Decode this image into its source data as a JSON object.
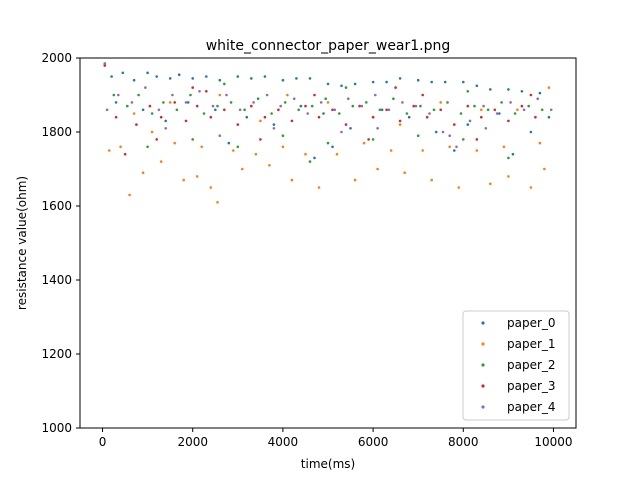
{
  "chart_data": {
    "type": "scatter",
    "title": "white_connector_paper_wear1.png",
    "xlabel": "time(ms)",
    "ylabel": "resistance value(ohm)",
    "xlim": [
      -500,
      10500
    ],
    "ylim": [
      1000,
      2000
    ],
    "xticks": [
      0,
      2000,
      4000,
      6000,
      8000,
      10000
    ],
    "yticks": [
      1000,
      1200,
      1400,
      1600,
      1800,
      2000
    ],
    "grid": false,
    "legend_position": "lower-right",
    "marker_size_note": "small dots",
    "series": [
      {
        "name": "paper_0",
        "color": "#1f77b4",
        "points": [
          [
            50,
            1985
          ],
          [
            200,
            1950
          ],
          [
            450,
            1960
          ],
          [
            700,
            1940
          ],
          [
            1000,
            1960
          ],
          [
            1200,
            1950
          ],
          [
            1500,
            1945
          ],
          [
            1700,
            1955
          ],
          [
            2000,
            1945
          ],
          [
            2300,
            1950
          ],
          [
            2600,
            1940
          ],
          [
            3000,
            1950
          ],
          [
            3300,
            1945
          ],
          [
            3600,
            1950
          ],
          [
            4000,
            1940
          ],
          [
            4300,
            1945
          ],
          [
            4600,
            1945
          ],
          [
            5000,
            1930
          ],
          [
            5300,
            1925
          ],
          [
            5600,
            1930
          ],
          [
            6000,
            1935
          ],
          [
            6300,
            1935
          ],
          [
            6600,
            1945
          ],
          [
            7000,
            1940
          ],
          [
            7300,
            1935
          ],
          [
            7600,
            1935
          ],
          [
            8000,
            1935
          ],
          [
            8300,
            1925
          ],
          [
            8600,
            1915
          ],
          [
            9000,
            1915
          ],
          [
            9300,
            1910
          ],
          [
            9700,
            1905
          ],
          [
            300,
            1880
          ],
          [
            900,
            1860
          ],
          [
            1400,
            1830
          ],
          [
            1900,
            1880
          ],
          [
            2500,
            1860
          ],
          [
            3200,
            1840
          ],
          [
            3800,
            1820
          ],
          [
            4400,
            1870
          ],
          [
            4900,
            1850
          ],
          [
            5500,
            1810
          ],
          [
            6200,
            1860
          ],
          [
            6800,
            1840
          ],
          [
            7400,
            1800
          ],
          [
            8100,
            1820
          ],
          [
            8800,
            1850
          ],
          [
            9500,
            1800
          ],
          [
            9900,
            1840
          ],
          [
            2800,
            1770
          ],
          [
            5100,
            1760
          ],
          [
            7800,
            1750
          ],
          [
            4700,
            1730
          ],
          [
            9100,
            1740
          ]
        ]
      },
      {
        "name": "paper_1",
        "color": "#ff7f0e",
        "points": [
          [
            50,
            1980
          ],
          [
            150,
            1750
          ],
          [
            600,
            1630
          ],
          [
            900,
            1690
          ],
          [
            1300,
            1720
          ],
          [
            1800,
            1670
          ],
          [
            2100,
            1680
          ],
          [
            2400,
            1650
          ],
          [
            2550,
            1610
          ],
          [
            3100,
            1700
          ],
          [
            3700,
            1710
          ],
          [
            4200,
            1670
          ],
          [
            4800,
            1650
          ],
          [
            5600,
            1670
          ],
          [
            6100,
            1700
          ],
          [
            6700,
            1690
          ],
          [
            7300,
            1670
          ],
          [
            7900,
            1650
          ],
          [
            8600,
            1660
          ],
          [
            9000,
            1680
          ],
          [
            9500,
            1650
          ],
          [
            9800,
            1700
          ],
          [
            400,
            1760
          ],
          [
            1100,
            1800
          ],
          [
            1600,
            1770
          ],
          [
            2200,
            1760
          ],
          [
            2900,
            1750
          ],
          [
            3400,
            1740
          ],
          [
            4000,
            1760
          ],
          [
            4500,
            1740
          ],
          [
            5200,
            1740
          ],
          [
            5800,
            1770
          ],
          [
            6400,
            1750
          ],
          [
            7100,
            1750
          ],
          [
            7700,
            1760
          ],
          [
            8300,
            1750
          ],
          [
            8900,
            1760
          ],
          [
            9700,
            1770
          ],
          [
            700,
            1850
          ],
          [
            2600,
            1900
          ],
          [
            5000,
            1880
          ],
          [
            7500,
            1880
          ],
          [
            9900,
            1920
          ],
          [
            3500,
            1830
          ],
          [
            6000,
            1840
          ],
          [
            8400,
            1860
          ],
          [
            1500,
            1880
          ],
          [
            4100,
            1900
          ],
          [
            6600,
            1820
          ],
          [
            9200,
            1860
          ]
        ]
      },
      {
        "name": "paper_2",
        "color": "#2ca02c",
        "points": [
          [
            50,
            1980
          ],
          [
            250,
            1900
          ],
          [
            550,
            1870
          ],
          [
            800,
            1900
          ],
          [
            1100,
            1850
          ],
          [
            1350,
            1880
          ],
          [
            1650,
            1860
          ],
          [
            1950,
            1900
          ],
          [
            2250,
            1850
          ],
          [
            2550,
            1870
          ],
          [
            2850,
            1880
          ],
          [
            3150,
            1860
          ],
          [
            3450,
            1890
          ],
          [
            3750,
            1850
          ],
          [
            4050,
            1880
          ],
          [
            4350,
            1860
          ],
          [
            4650,
            1870
          ],
          [
            4950,
            1890
          ],
          [
            5250,
            1850
          ],
          [
            5550,
            1870
          ],
          [
            5850,
            1880
          ],
          [
            6150,
            1860
          ],
          [
            6450,
            1890
          ],
          [
            6750,
            1850
          ],
          [
            7050,
            1870
          ],
          [
            7350,
            1860
          ],
          [
            7650,
            1880
          ],
          [
            7950,
            1850
          ],
          [
            8250,
            1870
          ],
          [
            8550,
            1860
          ],
          [
            8850,
            1880
          ],
          [
            9150,
            1850
          ],
          [
            9450,
            1870
          ],
          [
            9750,
            1860
          ],
          [
            1000,
            1760
          ],
          [
            2000,
            1780
          ],
          [
            3000,
            1760
          ],
          [
            4000,
            1790
          ],
          [
            5000,
            1770
          ],
          [
            6000,
            1780
          ],
          [
            7000,
            1790
          ],
          [
            8000,
            1780
          ],
          [
            9000,
            1730
          ],
          [
            4600,
            1720
          ],
          [
            2700,
            1930
          ],
          [
            5400,
            1920
          ],
          [
            8100,
            1910
          ]
        ]
      },
      {
        "name": "paper_3",
        "color": "#d62728",
        "points": [
          [
            50,
            1980
          ],
          [
            300,
            1840
          ],
          [
            500,
            1740
          ],
          [
            750,
            1820
          ],
          [
            1050,
            1870
          ],
          [
            1300,
            1840
          ],
          [
            1600,
            1880
          ],
          [
            1850,
            1830
          ],
          [
            2100,
            1870
          ],
          [
            2400,
            1840
          ],
          [
            2700,
            1860
          ],
          [
            3000,
            1820
          ],
          [
            3300,
            1870
          ],
          [
            3600,
            1840
          ],
          [
            3900,
            1860
          ],
          [
            4200,
            1830
          ],
          [
            4500,
            1870
          ],
          [
            4800,
            1840
          ],
          [
            5100,
            1860
          ],
          [
            5400,
            1820
          ],
          [
            5700,
            1870
          ],
          [
            6000,
            1840
          ],
          [
            6300,
            1860
          ],
          [
            6600,
            1830
          ],
          [
            6900,
            1870
          ],
          [
            7200,
            1840
          ],
          [
            7500,
            1860
          ],
          [
            7800,
            1820
          ],
          [
            8100,
            1870
          ],
          [
            8400,
            1840
          ],
          [
            8700,
            1860
          ],
          [
            9000,
            1830
          ],
          [
            9300,
            1870
          ],
          [
            9600,
            1840
          ],
          [
            1200,
            1780
          ],
          [
            2300,
            1910
          ],
          [
            3500,
            1780
          ],
          [
            4700,
            1900
          ],
          [
            5900,
            1780
          ],
          [
            7100,
            1900
          ],
          [
            8300,
            1780
          ],
          [
            9500,
            1900
          ],
          [
            2000,
            1920
          ],
          [
            6500,
            1920
          ]
        ]
      },
      {
        "name": "paper_4",
        "color": "#9467bd",
        "points": [
          [
            50,
            1985
          ],
          [
            100,
            1860
          ],
          [
            350,
            1900
          ],
          [
            650,
            1880
          ],
          [
            950,
            1920
          ],
          [
            1250,
            1860
          ],
          [
            1550,
            1900
          ],
          [
            1850,
            1880
          ],
          [
            2150,
            1910
          ],
          [
            2450,
            1870
          ],
          [
            2750,
            1900
          ],
          [
            3050,
            1860
          ],
          [
            3350,
            1880
          ],
          [
            3650,
            1900
          ],
          [
            3950,
            1870
          ],
          [
            4250,
            1890
          ],
          [
            4550,
            1850
          ],
          [
            4850,
            1880
          ],
          [
            5150,
            1860
          ],
          [
            5450,
            1890
          ],
          [
            5750,
            1870
          ],
          [
            6050,
            1900
          ],
          [
            6350,
            1860
          ],
          [
            6650,
            1880
          ],
          [
            6950,
            1870
          ],
          [
            7250,
            1850
          ],
          [
            7550,
            1800
          ],
          [
            7850,
            1760
          ],
          [
            8150,
            1830
          ],
          [
            8450,
            1870
          ],
          [
            8750,
            1850
          ],
          [
            9050,
            1880
          ],
          [
            9350,
            1860
          ],
          [
            9650,
            1890
          ],
          [
            9950,
            1860
          ],
          [
            1400,
            1810
          ],
          [
            3800,
            1810
          ],
          [
            6100,
            1810
          ],
          [
            8500,
            1810
          ],
          [
            2600,
            1790
          ],
          [
            5300,
            1800
          ],
          [
            7700,
            1790
          ]
        ]
      }
    ]
  }
}
